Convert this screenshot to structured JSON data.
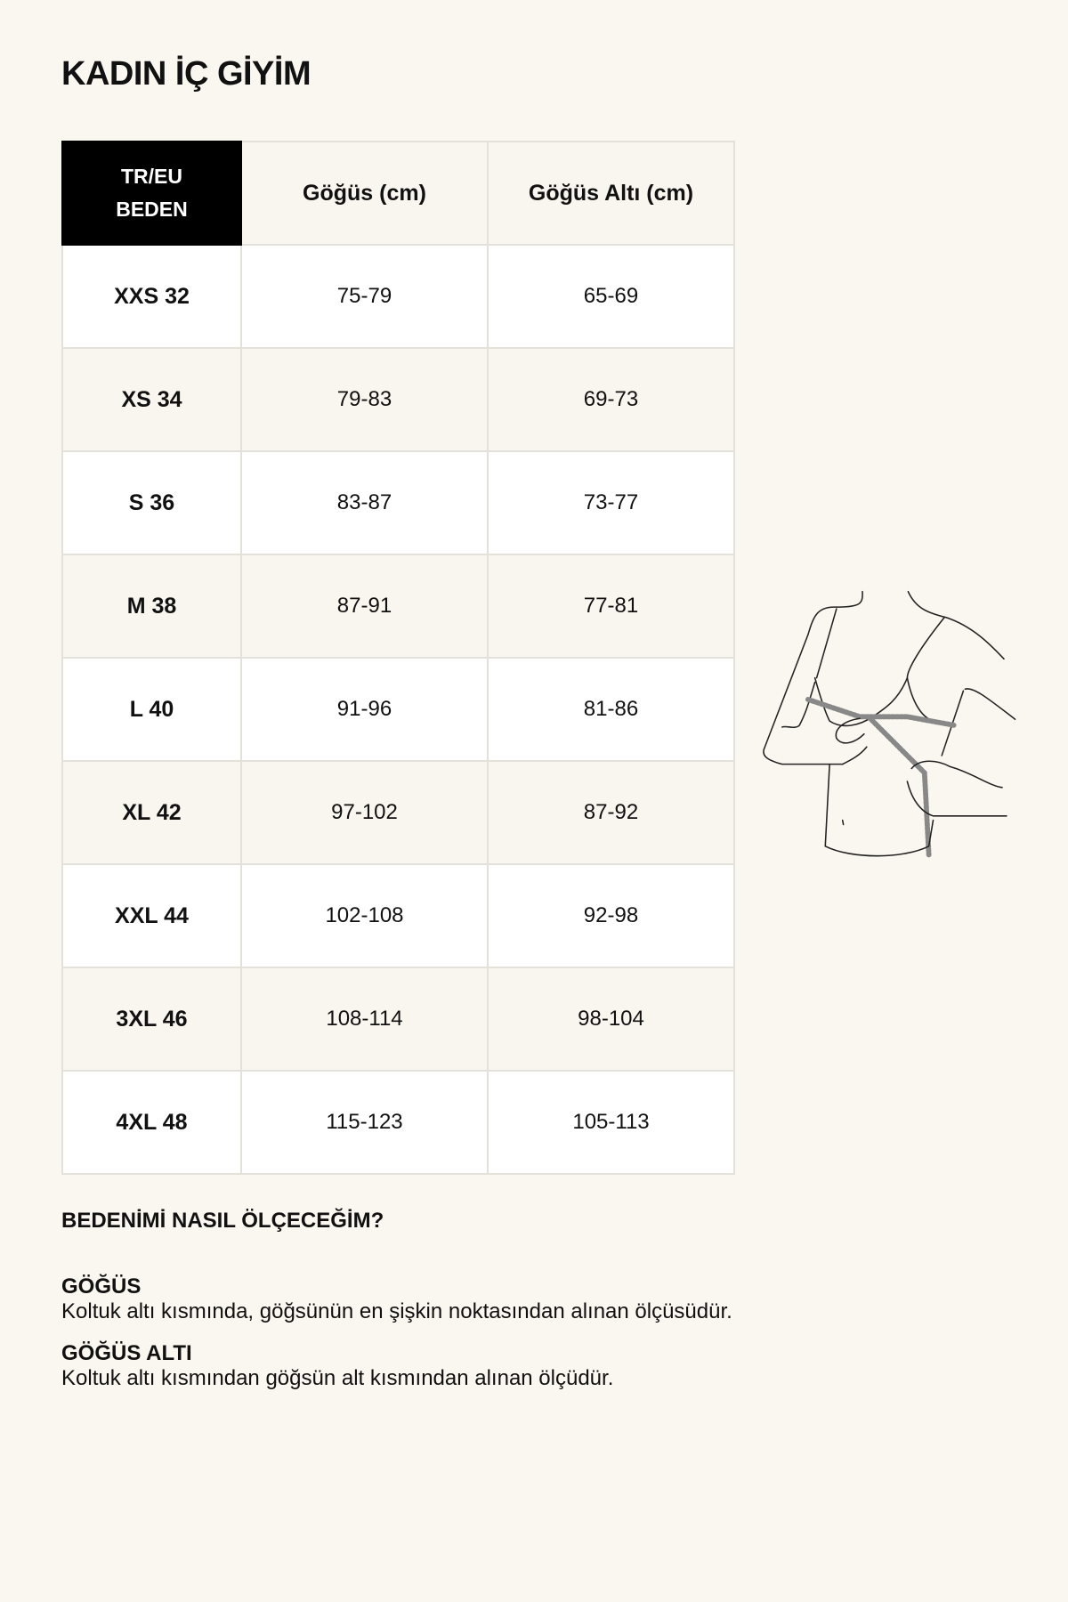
{
  "title": "KADIN İÇ GİYİM",
  "table": {
    "headers": {
      "size_line1": "TR/EU",
      "size_line2": "BEDEN",
      "bust": "Göğüs (cm)",
      "underbust": "Göğüs Altı (cm)"
    },
    "rows": [
      {
        "size": "XXS 32",
        "bust": "75-79",
        "underbust": "65-69"
      },
      {
        "size": "XS 34",
        "bust": "79-83",
        "underbust": "69-73"
      },
      {
        "size": "S 36",
        "bust": "83-87",
        "underbust": "73-77"
      },
      {
        "size": "M 38",
        "bust": "87-91",
        "underbust": "77-81"
      },
      {
        "size": "L 40",
        "bust": "91-96",
        "underbust": "81-86"
      },
      {
        "size": "XL 42",
        "bust": "97-102",
        "underbust": "87-92"
      },
      {
        "size": "XXL 44",
        "bust": "102-108",
        "underbust": "92-98"
      },
      {
        "size": "3XL 46",
        "bust": "108-114",
        "underbust": "98-104"
      },
      {
        "size": "4XL 48",
        "bust": "115-123",
        "underbust": "105-113"
      }
    ]
  },
  "how_to": {
    "heading": "BEDENİMİ NASIL ÖLÇECEĞİM?",
    "sections": [
      {
        "title": "GÖĞÜS",
        "text": "Koltuk altı kısmında, göğsünün en şişkin noktasından alınan ölçüsüdür."
      },
      {
        "title": "GÖĞÜS ALTI",
        "text": "Koltuk altı kısmından göğsün alt kısmından alınan ölçüdür."
      }
    ]
  },
  "colors": {
    "background": "#faf6f0",
    "header_dark": "#000000",
    "row_alt": "#f9f5ef",
    "border": "#e4e0da"
  },
  "illustration": "bust-measuring-tape-illustration"
}
